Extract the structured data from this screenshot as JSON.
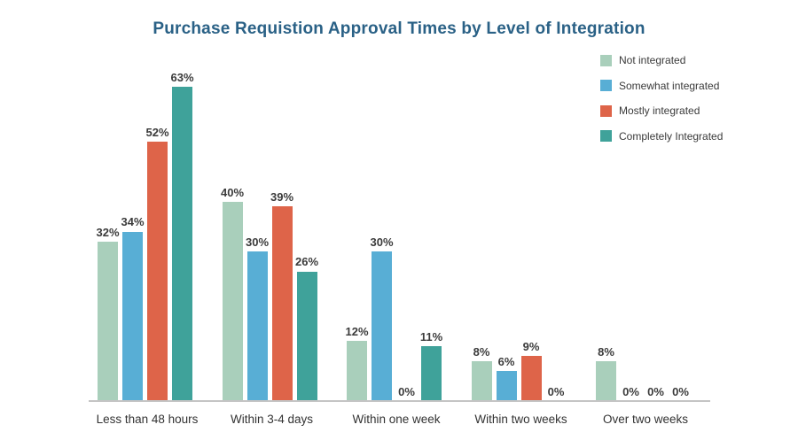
{
  "title": "Purchase Requistion Approval Times by Level of Integration",
  "colors": {
    "title_text": "#2a6186",
    "axis_line": "#c4c4c4",
    "value_label_text": "#3b3b3b",
    "category_label_text": "#333333",
    "background": "#ffffff"
  },
  "chart_data": {
    "type": "bar",
    "title": "Purchase Requistion Approval Times by Level of Integration",
    "xlabel": "",
    "ylabel": "",
    "ylim": [
      0,
      100
    ],
    "grid": false,
    "value_labels_shown": true,
    "value_label_format": "{value}%",
    "legend_position": "top-right",
    "categories": [
      "Less than 48 hours",
      "Within 3-4 days",
      "Within one week",
      "Within two weeks",
      "Over two weeks"
    ],
    "series": [
      {
        "name": "Not integrated",
        "color": "#a9cfbb",
        "values": [
          32,
          40,
          12,
          8,
          8
        ]
      },
      {
        "name": "Somewhat integrated",
        "color": "#58aed5",
        "values": [
          34,
          30,
          30,
          6,
          0
        ]
      },
      {
        "name": "Mostly integrated",
        "color": "#de6449",
        "values": [
          52,
          39,
          0,
          9,
          0
        ]
      },
      {
        "name": "Completely Integrated",
        "color": "#3fa29a",
        "values": [
          63,
          26,
          11,
          0,
          0
        ]
      }
    ]
  }
}
